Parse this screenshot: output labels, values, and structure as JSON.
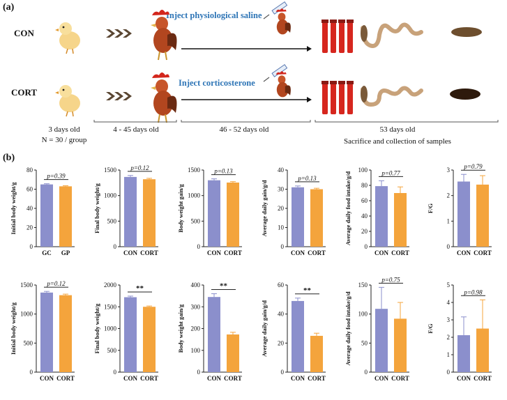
{
  "panel_a": {
    "label": "(a)",
    "groups": {
      "con": "CON",
      "cort": "CORT"
    },
    "inject_saline": "Inject physiological saline",
    "inject_cort": "Inject corticosterone",
    "timeline": {
      "t1": "3 days old",
      "t1b": "N = 30 / group",
      "t2": "4 - 45 days old",
      "t3": "46 - 52 days old",
      "t4": "53 days old",
      "t5": "Sacrifice and collection of samples"
    },
    "icons": [
      "chick-icon",
      "arrows-icon",
      "rooster-icon",
      "syringe-icon",
      "blood-tube-icon",
      "intestine-icon",
      "feces-icon"
    ]
  },
  "panel_b": {
    "label": "(b)"
  },
  "colors": {
    "con": "#8b8fcc",
    "cort": "#f4a43c",
    "axis": "#222222"
  },
  "chart_data": [
    {
      "type": "bar",
      "ylabel": "Initial body weight/g",
      "categories": [
        "GC",
        "GP"
      ],
      "values": [
        65,
        63
      ],
      "errors": [
        0.7,
        0.6
      ],
      "ylim": [
        0,
        80
      ],
      "ticks": [
        0,
        20,
        40,
        60,
        80
      ],
      "annotation": "p=0.39"
    },
    {
      "type": "bar",
      "ylabel": "Final body weight/g",
      "categories": [
        "CON",
        "CORT"
      ],
      "values": [
        1365,
        1320
      ],
      "errors": [
        28,
        18
      ],
      "ylim": [
        0,
        1500
      ],
      "ticks": [
        0,
        500,
        1000,
        1500
      ],
      "annotation": "p=0.12"
    },
    {
      "type": "bar",
      "ylabel": "Body weight gain/g",
      "categories": [
        "CON",
        "CORT"
      ],
      "values": [
        1300,
        1255
      ],
      "errors": [
        28,
        18
      ],
      "ylim": [
        0,
        1500
      ],
      "ticks": [
        0,
        500,
        1000,
        1500
      ],
      "annotation": "p=0.13"
    },
    {
      "type": "bar",
      "ylabel": "Average daily gain/g/d",
      "categories": [
        "CON",
        "CORT"
      ],
      "values": [
        31,
        30
      ],
      "errors": [
        0.7,
        0.5
      ],
      "ylim": [
        0,
        40
      ],
      "ticks": [
        0,
        10,
        20,
        30,
        40
      ],
      "annotation": "p=0.13"
    },
    {
      "type": "bar",
      "ylabel": "Average daily food intake/g/d",
      "categories": [
        "CON",
        "CORT"
      ],
      "values": [
        79,
        70
      ],
      "errors": [
        7,
        8
      ],
      "ylim": [
        0,
        100
      ],
      "ticks": [
        0,
        20,
        40,
        60,
        80,
        100
      ],
      "annotation": "p=0.77"
    },
    {
      "type": "bar",
      "ylabel": "F/G",
      "categories": [
        "CON",
        "CORT"
      ],
      "values": [
        2.55,
        2.43
      ],
      "errors": [
        0.28,
        0.35
      ],
      "ylim": [
        0,
        3
      ],
      "ticks": [
        0,
        1,
        2,
        3
      ],
      "annotation": "p=0.79"
    },
    {
      "type": "bar",
      "ylabel": "Initial body weight/g",
      "categories": [
        "CON",
        "CORT"
      ],
      "values": [
        1370,
        1325
      ],
      "errors": [
        20,
        18
      ],
      "ylim": [
        0,
        1500
      ],
      "ticks": [
        0,
        500,
        1000,
        1500
      ],
      "annotation": "p=0.12"
    },
    {
      "type": "bar",
      "ylabel": "Final body weight/g",
      "categories": [
        "CON",
        "CORT"
      ],
      "values": [
        1720,
        1500
      ],
      "errors": [
        25,
        18
      ],
      "ylim": [
        0,
        2000
      ],
      "ticks": [
        0,
        500,
        1000,
        1500,
        2000
      ],
      "annotation": "**"
    },
    {
      "type": "bar",
      "ylabel": "Body weight gain/g",
      "categories": [
        "CON",
        "CORT"
      ],
      "values": [
        345,
        173
      ],
      "errors": [
        15,
        10
      ],
      "ylim": [
        0,
        400
      ],
      "ticks": [
        0,
        100,
        200,
        300,
        400
      ],
      "annotation": "**"
    },
    {
      "type": "bar",
      "ylabel": "Average daily gain/g/d",
      "categories": [
        "CON",
        "CORT"
      ],
      "values": [
        49,
        25
      ],
      "errors": [
        2,
        1.8
      ],
      "ylim": [
        0,
        60
      ],
      "ticks": [
        0,
        20,
        40,
        60
      ],
      "annotation": "**"
    },
    {
      "type": "bar",
      "ylabel": "Average daily food intake/g/d",
      "categories": [
        "CON",
        "CORT"
      ],
      "values": [
        109,
        92
      ],
      "errors": [
        37,
        28
      ],
      "ylim": [
        0,
        150
      ],
      "ticks": [
        0,
        50,
        100,
        150
      ],
      "annotation": "p=0.75"
    },
    {
      "type": "bar",
      "ylabel": "F/G",
      "categories": [
        "CON",
        "CORT"
      ],
      "values": [
        2.12,
        2.5
      ],
      "errors": [
        1.05,
        1.65
      ],
      "ylim": [
        0,
        5
      ],
      "ticks": [
        0,
        1,
        2,
        3,
        4,
        5
      ],
      "annotation": "p=0.98"
    }
  ]
}
